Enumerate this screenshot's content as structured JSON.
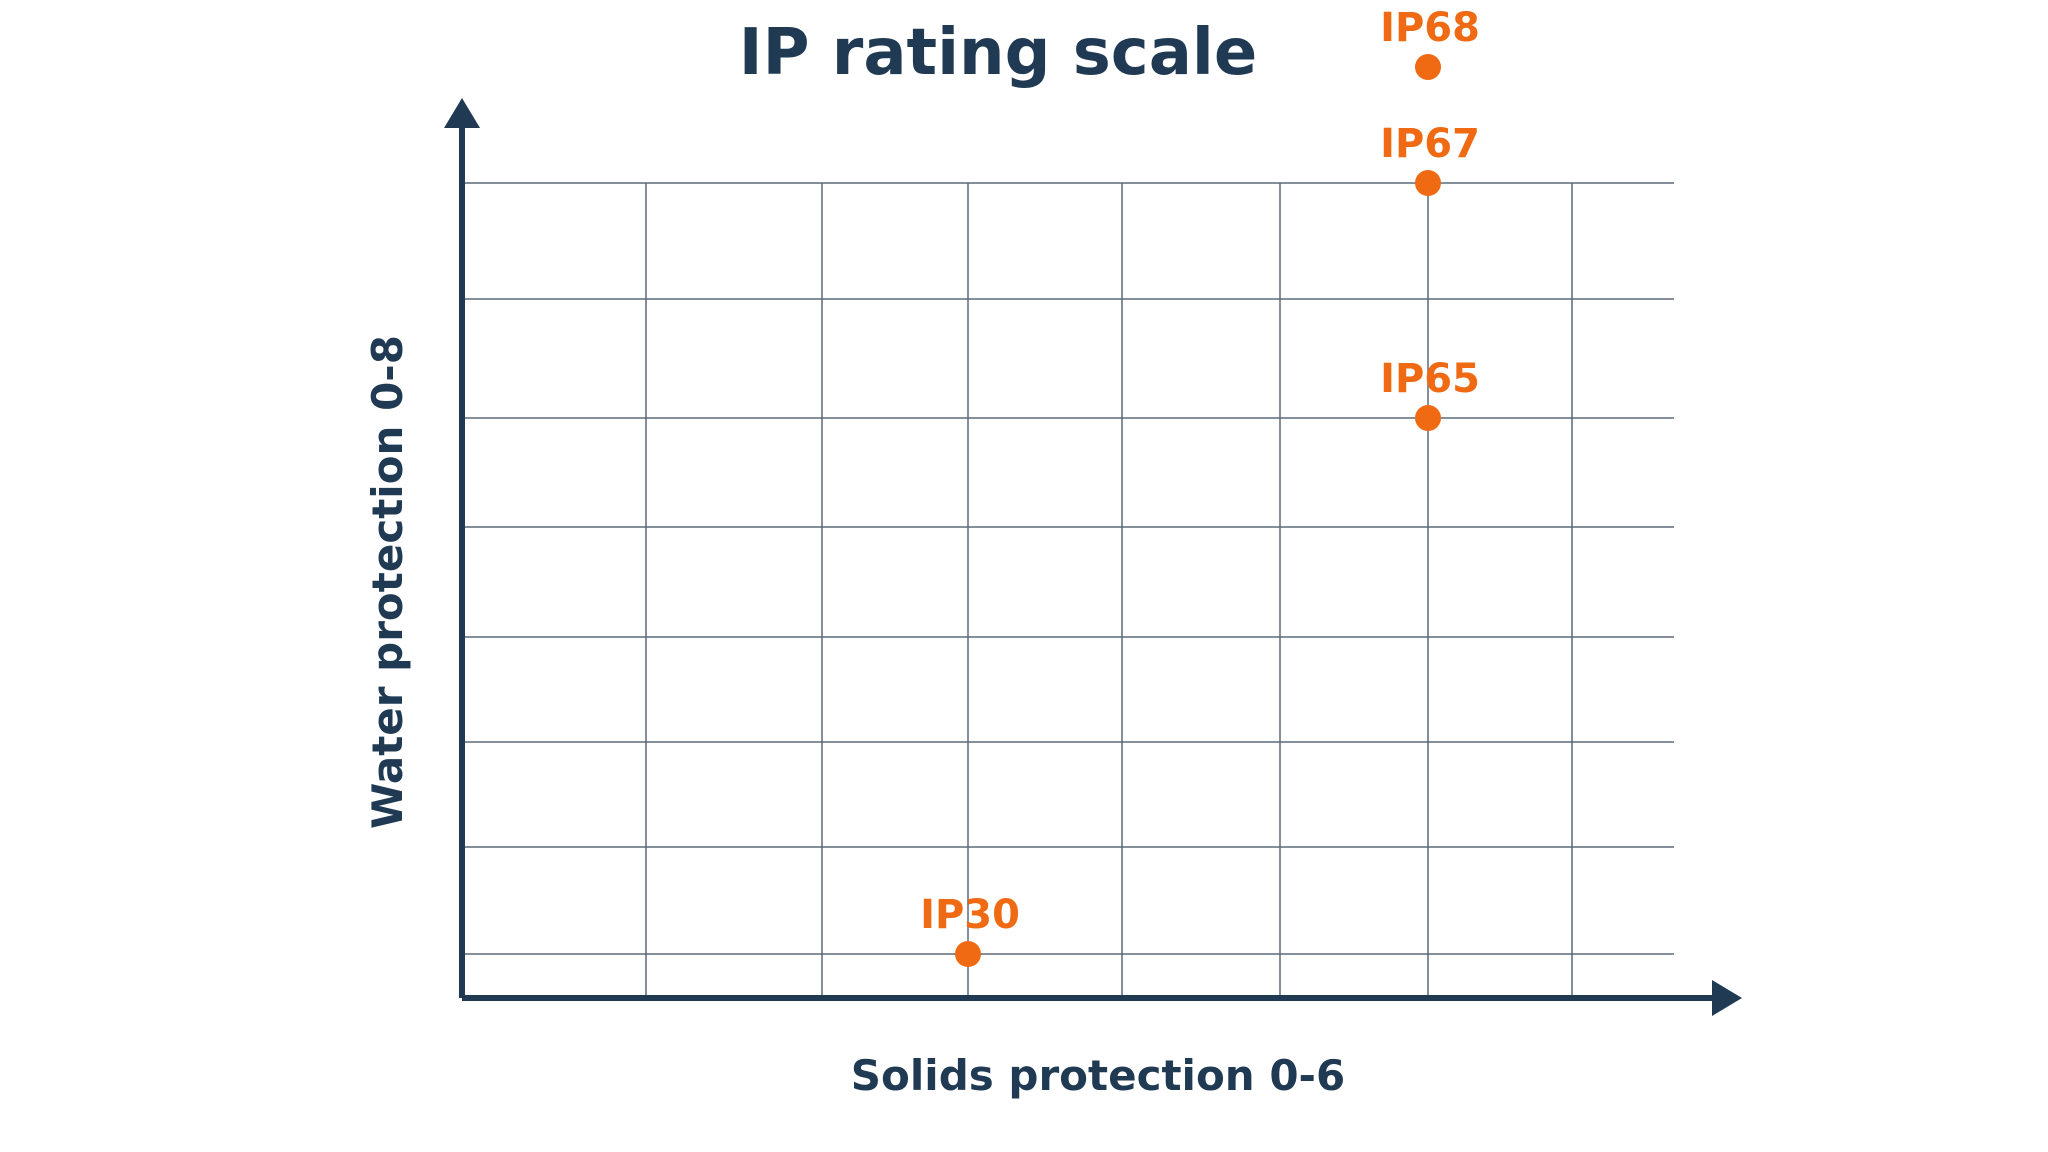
{
  "chart_data": {
    "type": "scatter",
    "title": "IP rating scale",
    "xlabel": "Solids protection 0-6",
    "ylabel": "Water protection 0-8",
    "xlim": [
      0,
      8
    ],
    "ylim": [
      0,
      8
    ],
    "grid": true,
    "points": [
      {
        "label": "IP30",
        "x": 3,
        "y": 0
      },
      {
        "label": "IP65",
        "x": 6,
        "y": 5
      },
      {
        "label": "IP67",
        "x": 6,
        "y": 7
      },
      {
        "label": "IP68",
        "x": 6,
        "y": 8
      }
    ]
  },
  "colors": {
    "text": "#1f3a52",
    "axis": "#1f3a52",
    "grid": "#5a6a78",
    "point": "#ef6a12"
  }
}
